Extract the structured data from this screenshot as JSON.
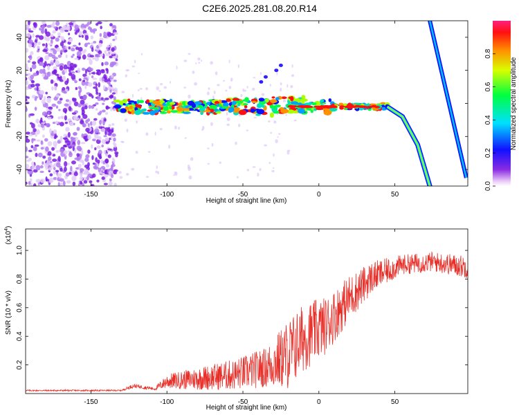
{
  "title": "C2E6.2025.281.08.20.R14",
  "chart_data": [
    {
      "type": "heatmap",
      "name": "spectrogram",
      "xlabel": "Height of straight line (km)",
      "ylabel": "Frequency (Hz)",
      "xlim": [
        -193,
        98
      ],
      "ylim": [
        -50,
        50
      ],
      "xticks": [
        -150,
        -100,
        -50,
        0,
        50
      ],
      "yticks": [
        -40,
        -20,
        0,
        20,
        40
      ],
      "colorbar": {
        "label": "Normalized spectral amplitude",
        "range": [
          0.0,
          1.0
        ],
        "ticks": [
          0.0,
          0.2,
          0.4,
          0.6,
          0.8
        ]
      },
      "features": [
        {
          "name": "noise-region",
          "x_range": [
            -193,
            -133
          ],
          "y_range": [
            -50,
            50
          ]
        },
        {
          "name": "main-band",
          "x_range": [
            -133,
            45
          ],
          "frequency": -2
        },
        {
          "name": "curve-down",
          "points": [
            [
              45,
              -2
            ],
            [
              55,
              -8
            ],
            [
              65,
              -25
            ],
            [
              73,
              -50
            ]
          ]
        },
        {
          "name": "steep-line",
          "points": [
            [
              73,
              50
            ],
            [
              97,
              -45
            ]
          ]
        }
      ]
    },
    {
      "type": "line",
      "name": "snr",
      "xlabel": "Height of straight line (km)",
      "ylabel": "SNR (10 * v/v)",
      "yscale_label": "(x10",
      "yscale_exp": "4",
      "xlim": [
        -193,
        98
      ],
      "ylim": [
        0,
        1.15
      ],
      "xticks": [
        -150,
        -100,
        -50,
        0,
        50
      ],
      "yticks": [
        0.2,
        0.4,
        0.6,
        0.8,
        1.0
      ],
      "series": [
        {
          "name": "SNR",
          "color": "#e8302a"
        }
      ],
      "envelope": [
        {
          "x": -193,
          "base": 0.02,
          "amp": 0.01
        },
        {
          "x": -130,
          "base": 0.02,
          "amp": 0.01
        },
        {
          "x": -122,
          "base": 0.05,
          "amp": 0.03
        },
        {
          "x": -108,
          "base": 0.03,
          "amp": 0.02
        },
        {
          "x": -100,
          "base": 0.07,
          "amp": 0.1
        },
        {
          "x": -80,
          "base": 0.08,
          "amp": 0.16
        },
        {
          "x": -55,
          "base": 0.1,
          "amp": 0.22
        },
        {
          "x": -35,
          "base": 0.14,
          "amp": 0.28
        },
        {
          "x": -20,
          "base": 0.2,
          "amp": 0.5
        },
        {
          "x": -10,
          "base": 0.32,
          "amp": 0.48
        },
        {
          "x": 5,
          "base": 0.42,
          "amp": 0.4
        },
        {
          "x": 20,
          "base": 0.62,
          "amp": 0.32
        },
        {
          "x": 35,
          "base": 0.78,
          "amp": 0.22
        },
        {
          "x": 55,
          "base": 0.88,
          "amp": 0.14
        },
        {
          "x": 75,
          "base": 0.9,
          "amp": 0.14
        },
        {
          "x": 98,
          "base": 0.86,
          "amp": 0.16
        }
      ]
    }
  ]
}
